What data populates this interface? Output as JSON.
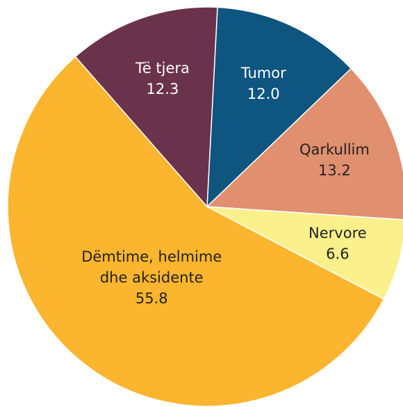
{
  "chart_data": {
    "type": "pie",
    "categories": [
      "Tumor",
      "Qarkullim",
      "Nervore",
      "Dëmtime, helmime dhe aksidente",
      "Të tjera"
    ],
    "values": [
      12.0,
      13.2,
      6.6,
      55.8,
      12.3
    ],
    "value_labels": [
      "12.0",
      "13.2",
      "6.6",
      "55.8",
      "12.3"
    ],
    "colors": [
      "#0e5580",
      "#e08f6f",
      "#faf08c",
      "#fbb52e",
      "#6b334b"
    ]
  }
}
